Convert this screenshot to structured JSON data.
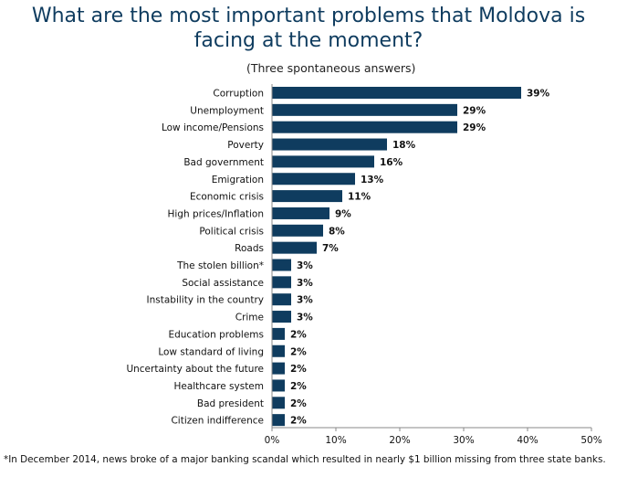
{
  "chart_data": {
    "type": "bar",
    "orientation": "horizontal",
    "title": "What are the most important problems that Moldova is facing at the moment?",
    "subtitle": "(Three spontaneous answers)",
    "categories": [
      "Corruption",
      "Unemployment",
      "Low income/Pensions",
      "Poverty",
      "Bad government",
      "Emigration",
      "Economic crisis",
      "High prices/Inflation",
      "Political crisis",
      "Roads",
      "The stolen billion*",
      "Social assistance",
      "Instability in the country",
      "Crime",
      "Education problems",
      "Low standard of living",
      "Uncertainty about the future",
      "Healthcare system",
      "Bad president",
      "Citizen indifference"
    ],
    "values": [
      39,
      29,
      29,
      18,
      16,
      13,
      11,
      9,
      8,
      7,
      3,
      3,
      3,
      3,
      2,
      2,
      2,
      2,
      2,
      2
    ],
    "value_labels": [
      "39%",
      "29%",
      "29%",
      "18%",
      "16%",
      "13%",
      "11%",
      "9%",
      "8%",
      "7%",
      "3%",
      "3%",
      "3%",
      "3%",
      "2%",
      "2%",
      "2%",
      "2%",
      "2%",
      "2%"
    ],
    "xlim": [
      0,
      50
    ],
    "xticks": [
      "0%",
      "10%",
      "20%",
      "30%",
      "40%",
      "50%"
    ],
    "bar_color": "#0f3c5f",
    "grid": false,
    "footnote": "*In December 2014, news broke of a major banking scandal which resulted in nearly $1 billion missing from three state banks."
  }
}
